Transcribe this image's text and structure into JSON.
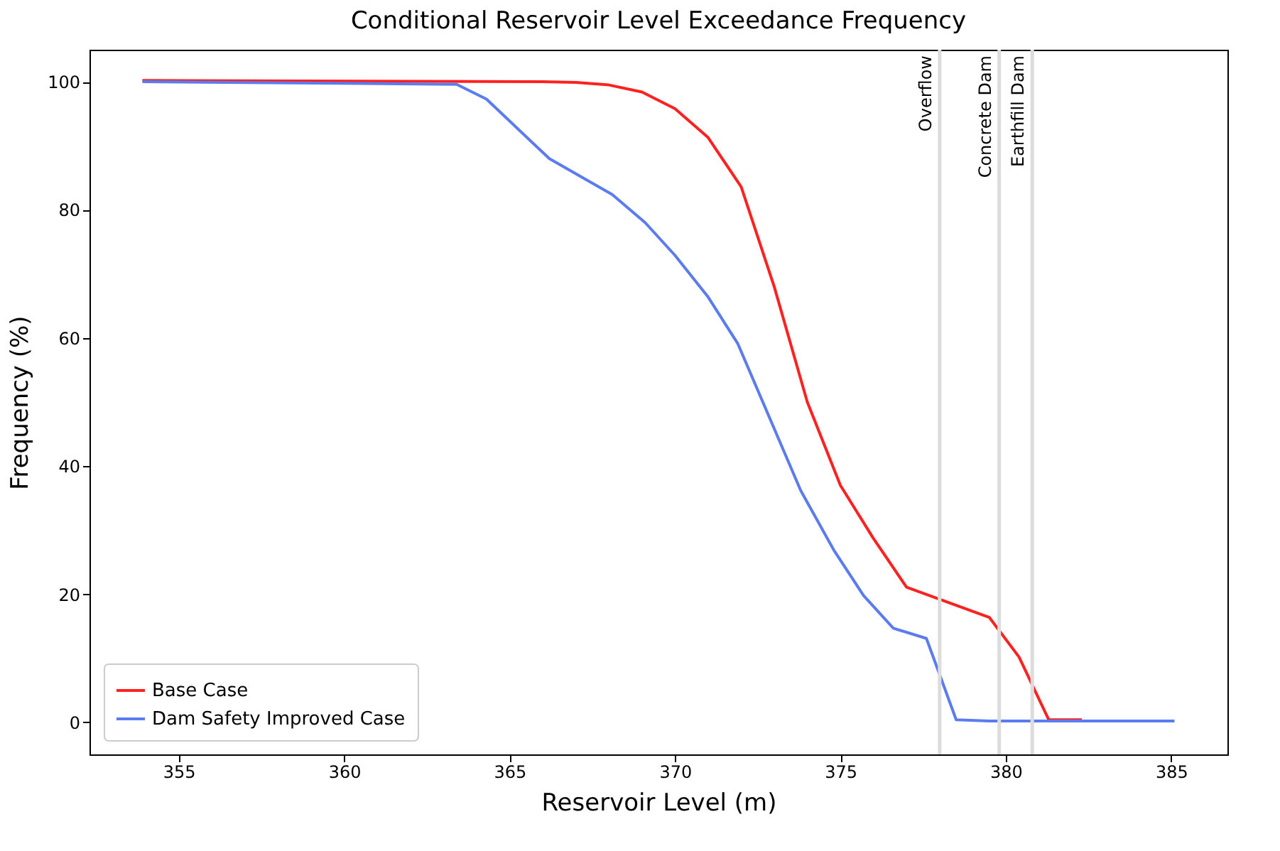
{
  "chart_data": {
    "type": "line",
    "title": "Conditional Reservoir Level Exceedance Frequency",
    "xlabel": "Reservoir Level (m)",
    "ylabel": "Frequency (%)",
    "xlim": [
      352.3,
      386.7
    ],
    "xticks": [
      355,
      360,
      365,
      370,
      375,
      380,
      385
    ],
    "ylim": [
      -5,
      105
    ],
    "yticks": [
      0,
      20,
      40,
      60,
      80,
      100
    ],
    "grid": false,
    "legend": "bottom left",
    "series": [
      {
        "name": "Base Case",
        "color": "#ff2020",
        "x": [
          353.9,
          366,
          367,
          368,
          369,
          370,
          371,
          372,
          373,
          374,
          375,
          376,
          377,
          379.5,
          380.4,
          381.3,
          382.3
        ],
        "values": [
          100.2,
          100,
          99.9,
          99.5,
          98.4,
          95.8,
          91.3,
          83.6,
          68,
          50,
          37,
          28.7,
          21.1,
          16.4,
          10.2,
          0.4,
          0.4
        ]
      },
      {
        "name": "Dam Safety Improved Case",
        "color": "#5b7cf0",
        "x": [
          353.9,
          363.4,
          364.3,
          366.2,
          368.1,
          369.1,
          370,
          371,
          371.9,
          373.8,
          374.8,
          375.7,
          376.6,
          377.6,
          378.5,
          379.5,
          385.1
        ],
        "values": [
          100,
          99.6,
          97.3,
          88,
          82.4,
          78,
          72.9,
          66.4,
          59.1,
          36.2,
          26.9,
          19.8,
          14.7,
          13.1,
          0.4,
          0.2,
          0.2
        ]
      }
    ],
    "ref_lines": [
      {
        "axis": "x",
        "value": 378,
        "label": "Overflow",
        "color": "#dcdcdc"
      },
      {
        "axis": "x",
        "value": 379.8,
        "label": "Concrete Dam",
        "color": "#dcdcdc"
      },
      {
        "axis": "x",
        "value": 380.8,
        "label": "Earthfill Dam",
        "color": "#dcdcdc"
      }
    ]
  }
}
